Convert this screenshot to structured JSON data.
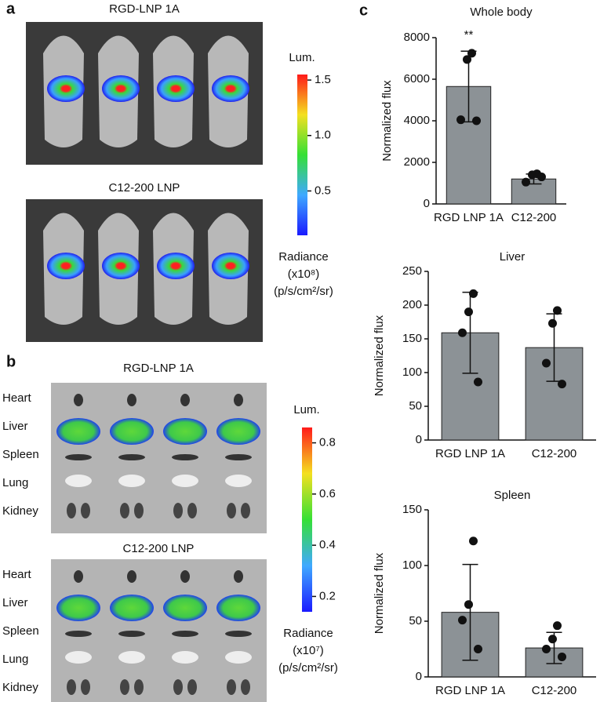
{
  "panels": {
    "a": {
      "label": "a",
      "titles": [
        "RGD-LNP 1A",
        "C12-200 LNP"
      ],
      "colorbar": {
        "title": "Lum.",
        "clim": [
          0.1,
          1.55
        ],
        "ticks": [
          {
            "value": 1.5,
            "label": "1.5"
          },
          {
            "value": 1,
            "label": "1.0"
          },
          {
            "value": 0.5,
            "label": "0.5"
          }
        ],
        "unit": [
          "Radiance",
          "(x10⁸)",
          "(p/s/cm²/sr)"
        ]
      }
    },
    "b": {
      "label": "b",
      "titles": [
        "RGD-LNP 1A",
        "C12-200 LNP"
      ],
      "organs": [
        "Heart",
        "Liver",
        "Spleen",
        "Lung",
        "Kidney"
      ],
      "colorbar": {
        "title": "Lum.",
        "clim": [
          0.14,
          0.86
        ],
        "ticks": [
          0.8,
          0.6,
          0.4,
          0.2
        ],
        "unit": [
          "Radiance",
          "(x10⁷)",
          "(p/s/cm²/sr)"
        ]
      }
    },
    "c": {
      "label": "c"
    }
  },
  "chart_data": [
    {
      "type": "bar",
      "title": "Whole body",
      "ylabel": "Normalized flux",
      "categories": [
        "RGD LNP 1A",
        "C12-200"
      ],
      "values": [
        5650,
        1200
      ],
      "errors": [
        1700,
        240
      ],
      "points": [
        [
          7250,
          6950,
          4050,
          4000
        ],
        [
          1450,
          1400,
          1050,
          1300
        ]
      ],
      "color": "#8c9296",
      "ylim": [
        0,
        8000
      ],
      "yticks": [
        0,
        2000,
        4000,
        6000,
        8000
      ],
      "annotation": "**"
    },
    {
      "type": "bar",
      "title": "Liver",
      "ylabel": "Normalized flux",
      "categories": [
        "RGD LNP 1A",
        "C12-200"
      ],
      "values": [
        159,
        137
      ],
      "errors": [
        60,
        50
      ],
      "points": [
        [
          217,
          190,
          159,
          86
        ],
        [
          192,
          173,
          114,
          83
        ]
      ],
      "color": "#8c9296",
      "ylim": [
        0,
        250
      ],
      "yticks": [
        0,
        50,
        100,
        150,
        200,
        250
      ]
    },
    {
      "type": "bar",
      "title": "Spleen",
      "ylabel": "Normalized flux",
      "categories": [
        "RGD LNP 1A",
        "C12-200"
      ],
      "values": [
        58,
        26
      ],
      "errors": [
        43,
        14
      ],
      "points": [
        [
          122,
          65,
          51,
          25
        ],
        [
          46,
          34,
          25,
          18
        ]
      ],
      "color": "#8c9296",
      "ylim": [
        0,
        150
      ],
      "yticks": [
        0,
        50,
        100,
        150
      ]
    }
  ]
}
